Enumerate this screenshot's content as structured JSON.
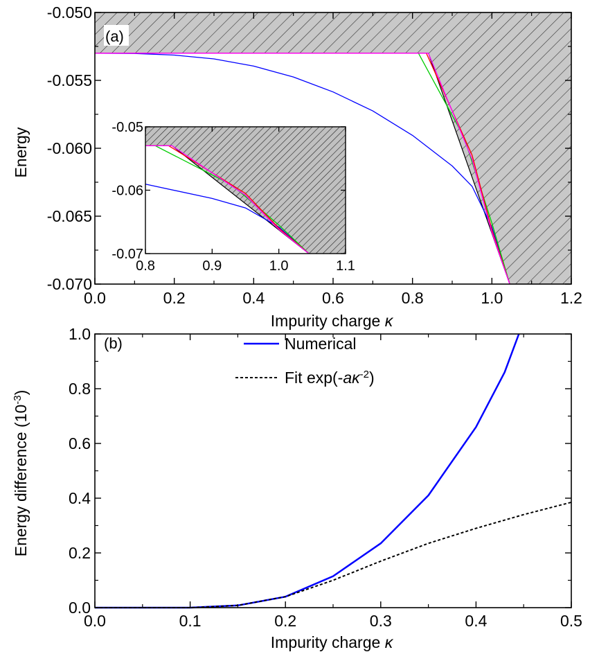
{
  "chart_data": [
    {
      "id": "a",
      "type": "line",
      "panel_label": "(a)",
      "xlabel": "Impurity charge ",
      "xlabel_symbol": "κ",
      "ylabel": "Energy",
      "xlim": [
        0.0,
        1.2
      ],
      "ylim": [
        -0.07,
        -0.05
      ],
      "xticks": [
        "0.0",
        "0.2",
        "0.4",
        "0.6",
        "0.8",
        "1.0",
        "1.2"
      ],
      "yticks": [
        "-0.050",
        "-0.055",
        "-0.060",
        "-0.065",
        "-0.070"
      ],
      "continuum": {
        "top_edge": -0.053,
        "boundary": [
          [
            0.0,
            -0.053
          ],
          [
            0.84,
            -0.053
          ],
          [
            1.045,
            -0.07
          ]
        ],
        "fill": "#c8c8c8"
      },
      "series": [
        {
          "color": "#0000ff",
          "x": [
            0.0,
            0.1,
            0.2,
            0.3,
            0.4,
            0.5,
            0.6,
            0.7,
            0.8,
            0.9,
            0.95,
            1.0,
            1.045
          ],
          "y": [
            -0.053,
            -0.05302,
            -0.05314,
            -0.05342,
            -0.05395,
            -0.05475,
            -0.05585,
            -0.05725,
            -0.05905,
            -0.0613,
            -0.0628,
            -0.0658,
            -0.07
          ]
        },
        {
          "color": "#00cc00",
          "x": [
            0.0,
            0.815,
            0.93,
            1.0,
            1.045
          ],
          "y": [
            -0.053,
            -0.053,
            -0.0592,
            -0.0655,
            -0.07
          ]
        },
        {
          "color": "#ff0000",
          "x": [
            0.0,
            0.835,
            0.95,
            1.0,
            1.045
          ],
          "y": [
            -0.053,
            -0.053,
            -0.0605,
            -0.066,
            -0.07
          ]
        },
        {
          "color": "#ff00ff",
          "x": [
            0.0,
            0.84,
            0.95,
            1.0,
            1.045
          ],
          "y": [
            -0.053,
            -0.053,
            -0.0608,
            -0.0662,
            -0.07
          ]
        }
      ],
      "inset": {
        "xlim": [
          0.8,
          1.1
        ],
        "ylim": [
          -0.07,
          -0.05
        ],
        "xticks": [
          "0.8",
          "0.9",
          "1.0",
          "1.1"
        ],
        "yticks": [
          "-0.05",
          "-0.06",
          "-0.07"
        ]
      }
    },
    {
      "id": "b",
      "type": "line",
      "panel_label": "(b)",
      "xlabel": "Impurity charge ",
      "xlabel_symbol": "κ",
      "ylabel": "Energy difference (10",
      "ylabel_sup": "-3",
      "ylabel_end": ")",
      "xlim": [
        0.0,
        0.5
      ],
      "ylim": [
        0.0,
        1.0
      ],
      "xticks": [
        "0.0",
        "0.1",
        "0.2",
        "0.3",
        "0.4",
        "0.5"
      ],
      "yticks": [
        "0.0",
        "0.2",
        "0.4",
        "0.6",
        "0.8",
        "1.0"
      ],
      "legend_position": "top-center",
      "series": [
        {
          "name": "Numerical",
          "color": "#0000ff",
          "style": "solid",
          "x": [
            0.0,
            0.05,
            0.1,
            0.15,
            0.2,
            0.25,
            0.3,
            0.35,
            0.4,
            0.43,
            0.445
          ],
          "y": [
            0.0,
            0.0,
            0.0,
            0.008,
            0.04,
            0.115,
            0.235,
            0.41,
            0.66,
            0.86,
            1.0
          ]
        },
        {
          "name": "Fit exp(-aκ-2)",
          "color": "#000000",
          "style": "dashed",
          "x": [
            0.0,
            0.05,
            0.1,
            0.15,
            0.2,
            0.25,
            0.3,
            0.35,
            0.4,
            0.45,
            0.5
          ],
          "y": [
            0.0,
            0.0,
            0.0,
            0.008,
            0.04,
            0.1,
            0.17,
            0.235,
            0.29,
            0.34,
            0.385
          ]
        }
      ],
      "legend": [
        {
          "text": "Numerical"
        },
        {
          "text_pre": "Fit exp(-",
          "text_a": "aκ",
          "text_sup": "-2",
          "text_post": ")"
        }
      ]
    }
  ]
}
